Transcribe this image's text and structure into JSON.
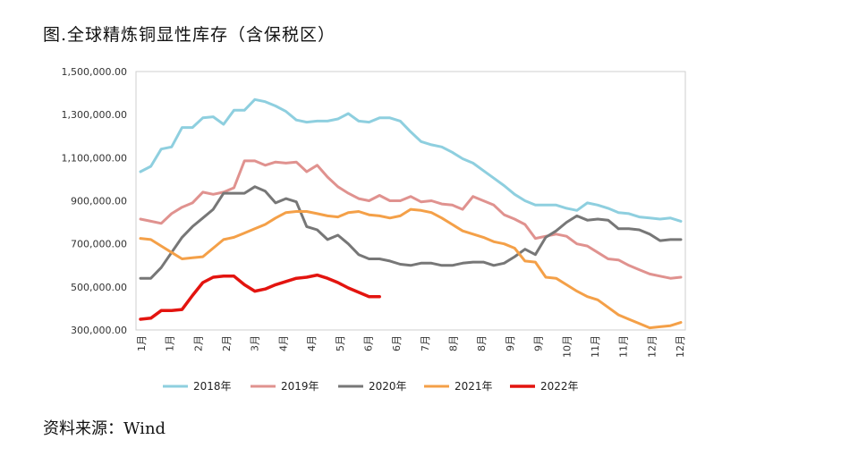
{
  "title": "图.全球精炼铜显性库存（含保税区）",
  "source": "资料来源：Wind",
  "chart_data": {
    "type": "line",
    "ylim": [
      300000,
      1500000
    ],
    "yticks": [
      300000,
      500000,
      700000,
      900000,
      1100000,
      1300000,
      1500000
    ],
    "ytick_labels": [
      "300,000.00",
      "500,000.00",
      "700,000.00",
      "900,000.00",
      "1,100,000.00",
      "1,300,000.00",
      "1,500,000.00"
    ],
    "xtick_labels": [
      "1月",
      "1月",
      "2月",
      "2月",
      "3月",
      "4月",
      "4月",
      "5月",
      "6月",
      "6月",
      "7月",
      "8月",
      "8月",
      "9月",
      "9月",
      "10月",
      "11月",
      "11月",
      "12月",
      "12月"
    ],
    "x_points": 53,
    "legend_position": "bottom",
    "series": [
      {
        "name": "2018年",
        "color": "#8ecfdf",
        "values": [
          1035000,
          1060000,
          1140000,
          1150000,
          1240000,
          1240000,
          1285000,
          1290000,
          1255000,
          1320000,
          1320000,
          1370000,
          1360000,
          1340000,
          1315000,
          1275000,
          1265000,
          1270000,
          1270000,
          1280000,
          1305000,
          1270000,
          1265000,
          1285000,
          1285000,
          1270000,
          1220000,
          1175000,
          1160000,
          1150000,
          1125000,
          1095000,
          1075000,
          1040000,
          1005000,
          970000,
          930000,
          900000,
          880000,
          880000,
          880000,
          865000,
          855000,
          890000,
          880000,
          865000,
          845000,
          840000,
          825000,
          820000,
          815000,
          820000,
          805000
        ]
      },
      {
        "name": "2019年",
        "color": "#e0928f",
        "values": [
          815000,
          805000,
          795000,
          840000,
          870000,
          890000,
          940000,
          930000,
          940000,
          960000,
          1085000,
          1085000,
          1065000,
          1080000,
          1075000,
          1080000,
          1035000,
          1065000,
          1010000,
          965000,
          935000,
          910000,
          900000,
          925000,
          900000,
          900000,
          920000,
          895000,
          900000,
          885000,
          880000,
          860000,
          920000,
          900000,
          880000,
          835000,
          815000,
          790000,
          725000,
          735000,
          745000,
          735000,
          700000,
          690000,
          660000,
          630000,
          625000,
          600000,
          580000,
          560000,
          550000,
          540000,
          545000
        ]
      },
      {
        "name": "2020年",
        "color": "#777777",
        "values": [
          540000,
          540000,
          590000,
          660000,
          730000,
          780000,
          820000,
          860000,
          935000,
          935000,
          935000,
          965000,
          945000,
          890000,
          910000,
          895000,
          780000,
          765000,
          720000,
          740000,
          700000,
          650000,
          630000,
          630000,
          620000,
          605000,
          600000,
          610000,
          610000,
          600000,
          600000,
          610000,
          615000,
          615000,
          600000,
          610000,
          640000,
          675000,
          650000,
          730000,
          760000,
          800000,
          830000,
          810000,
          815000,
          810000,
          770000,
          770000,
          765000,
          745000,
          715000,
          720000,
          720000
        ]
      },
      {
        "name": "2021年",
        "color": "#f4a048",
        "values": [
          725000,
          720000,
          690000,
          660000,
          630000,
          635000,
          640000,
          680000,
          720000,
          730000,
          750000,
          770000,
          790000,
          820000,
          845000,
          850000,
          850000,
          840000,
          830000,
          825000,
          845000,
          850000,
          835000,
          830000,
          820000,
          830000,
          860000,
          855000,
          845000,
          820000,
          790000,
          760000,
          745000,
          730000,
          710000,
          700000,
          680000,
          620000,
          615000,
          545000,
          540000,
          510000,
          480000,
          455000,
          440000,
          405000,
          370000,
          350000,
          330000,
          310000,
          315000,
          320000,
          335000
        ]
      },
      {
        "name": "2022年",
        "color": "#e3140f",
        "values": [
          350000,
          355000,
          390000,
          390000,
          395000,
          460000,
          520000,
          545000,
          550000,
          550000,
          510000,
          480000,
          490000,
          510000,
          525000,
          540000,
          545000,
          555000,
          540000,
          520000,
          495000,
          475000,
          455000,
          455000
        ]
      }
    ]
  }
}
